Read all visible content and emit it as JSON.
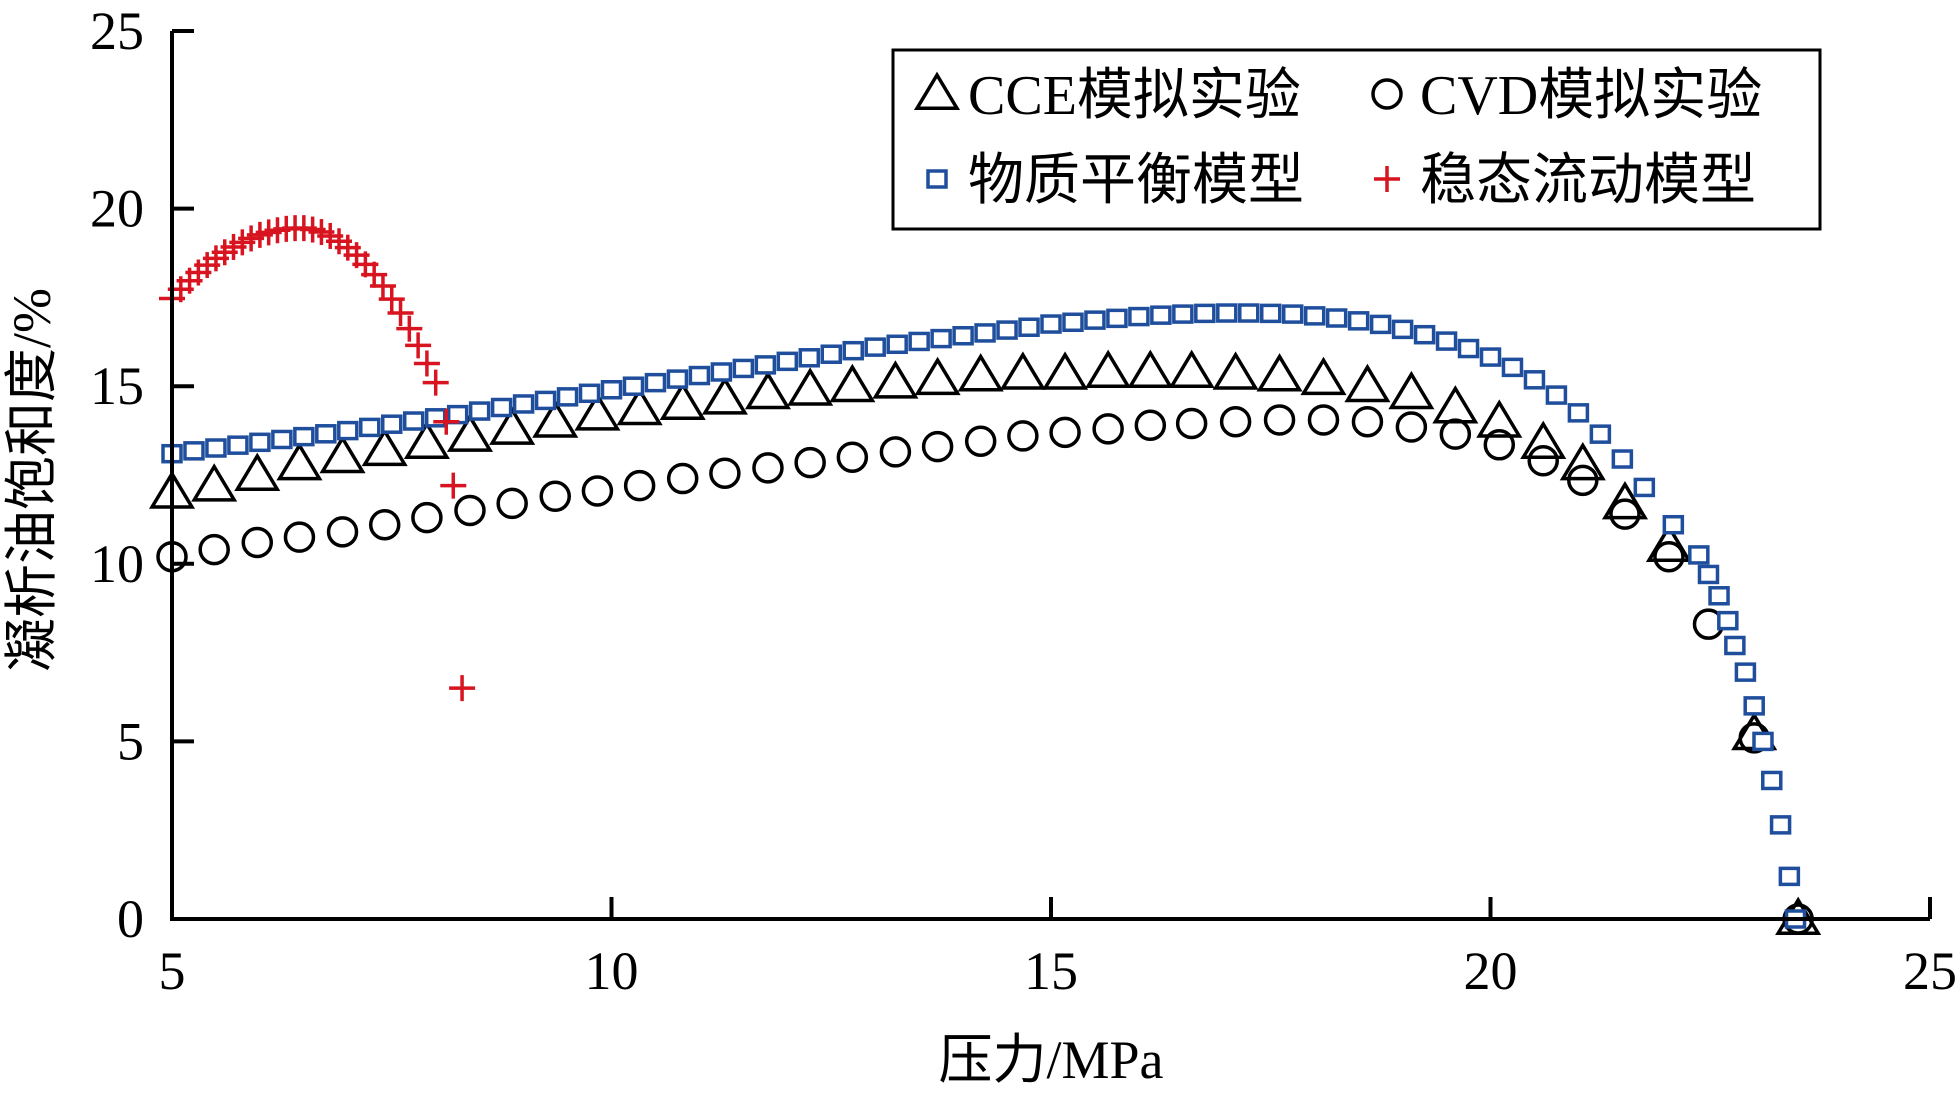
{
  "chart_data": {
    "type": "scatter",
    "xlabel": "压力/MPa",
    "ylabel": "凝析油饱和度/%",
    "xlim": [
      5,
      25
    ],
    "ylim": [
      0,
      25
    ],
    "xticks": [
      "5",
      "10",
      "15",
      "20",
      "25"
    ],
    "yticks": [
      "0",
      "5",
      "10",
      "15",
      "20",
      "25"
    ],
    "grid": false,
    "legend_position": "top-right",
    "series": [
      {
        "name": "CCE模拟实验",
        "marker": "triangle",
        "color": "#000000",
        "x": [
          5.0,
          5.48,
          5.97,
          6.45,
          6.94,
          7.42,
          7.9,
          8.39,
          8.87,
          9.36,
          9.84,
          10.32,
          10.81,
          11.29,
          11.78,
          12.26,
          12.74,
          13.23,
          13.71,
          14.2,
          14.68,
          15.16,
          15.65,
          16.13,
          16.6,
          17.1,
          17.6,
          18.1,
          18.6,
          19.1,
          19.6,
          20.1,
          20.6,
          21.05,
          21.53,
          22.03,
          23.0,
          23.5
        ],
        "y": [
          12.0,
          12.2,
          12.5,
          12.8,
          13.0,
          13.2,
          13.4,
          13.6,
          13.8,
          14.0,
          14.2,
          14.35,
          14.5,
          14.65,
          14.8,
          14.9,
          15.0,
          15.1,
          15.2,
          15.3,
          15.35,
          15.35,
          15.4,
          15.4,
          15.4,
          15.35,
          15.3,
          15.2,
          15.0,
          14.8,
          14.4,
          14.0,
          13.4,
          12.8,
          11.7,
          10.5,
          5.2,
          0.0
        ]
      },
      {
        "name": "CVD模拟实验",
        "marker": "circle",
        "color": "#000000",
        "x": [
          5.0,
          5.48,
          5.97,
          6.45,
          6.94,
          7.42,
          7.9,
          8.39,
          8.87,
          9.36,
          9.84,
          10.32,
          10.81,
          11.29,
          11.78,
          12.26,
          12.74,
          13.23,
          13.71,
          14.2,
          14.68,
          15.16,
          15.65,
          16.13,
          16.6,
          17.1,
          17.6,
          18.1,
          18.6,
          19.1,
          19.6,
          20.1,
          20.6,
          21.05,
          21.53,
          22.03,
          22.48,
          23.0,
          23.5
        ],
        "y": [
          10.2,
          10.4,
          10.6,
          10.75,
          10.9,
          11.1,
          11.3,
          11.5,
          11.7,
          11.9,
          12.05,
          12.2,
          12.4,
          12.55,
          12.7,
          12.85,
          13.0,
          13.15,
          13.3,
          13.45,
          13.6,
          13.7,
          13.8,
          13.9,
          13.95,
          14.0,
          14.05,
          14.05,
          14.0,
          13.85,
          13.65,
          13.35,
          12.9,
          12.35,
          11.4,
          10.2,
          8.3,
          5.1,
          0.0
        ]
      },
      {
        "name": "物质平衡模型",
        "marker": "square",
        "color": "#1f4e9c",
        "x": [
          5,
          5.25,
          5.5,
          5.75,
          6,
          6.25,
          6.5,
          6.75,
          7,
          7.25,
          7.5,
          7.75,
          8,
          8.25,
          8.5,
          8.75,
          9,
          9.25,
          9.5,
          9.75,
          10,
          10.25,
          10.5,
          10.75,
          11,
          11.25,
          11.5,
          11.75,
          12,
          12.25,
          12.5,
          12.75,
          13,
          13.25,
          13.5,
          13.75,
          14,
          14.25,
          14.5,
          14.75,
          15,
          15.25,
          15.5,
          15.75,
          16,
          16.25,
          16.5,
          16.75,
          17,
          17.25,
          17.5,
          17.75,
          18,
          18.25,
          18.5,
          18.75,
          19,
          19.25,
          19.5,
          19.75,
          20,
          20.25,
          20.5,
          20.75,
          21,
          21.25,
          21.5,
          21.75,
          22.08,
          22.37,
          22.48,
          22.6,
          22.7,
          22.78,
          22.9,
          23.0,
          23.1,
          23.2,
          23.3,
          23.4,
          23.47
        ],
        "y": [
          13.1,
          13.18,
          13.26,
          13.34,
          13.42,
          13.5,
          13.58,
          13.66,
          13.75,
          13.84,
          13.93,
          14.02,
          14.11,
          14.2,
          14.3,
          14.4,
          14.5,
          14.6,
          14.7,
          14.8,
          14.9,
          15.0,
          15.1,
          15.2,
          15.3,
          15.4,
          15.5,
          15.6,
          15.7,
          15.8,
          15.9,
          16.0,
          16.1,
          16.18,
          16.26,
          16.34,
          16.42,
          16.5,
          16.58,
          16.66,
          16.75,
          16.8,
          16.86,
          16.91,
          16.96,
          17.0,
          17.03,
          17.05,
          17.06,
          17.06,
          17.05,
          17.03,
          16.98,
          16.92,
          16.84,
          16.74,
          16.6,
          16.45,
          16.27,
          16.06,
          15.82,
          15.53,
          15.18,
          14.75,
          14.25,
          13.65,
          12.95,
          12.15,
          11.1,
          10.25,
          9.7,
          9.1,
          8.4,
          7.7,
          6.95,
          6.0,
          5.0,
          3.9,
          2.65,
          1.2,
          0.0
        ]
      },
      {
        "name": "稳态流动模型",
        "marker": "plus",
        "color": "#d7141f",
        "x": [
          5.0,
          5.1,
          5.2,
          5.3,
          5.4,
          5.5,
          5.6,
          5.7,
          5.8,
          5.9,
          6.0,
          6.1,
          6.2,
          6.3,
          6.4,
          6.5,
          6.6,
          6.7,
          6.8,
          6.9,
          7.0,
          7.1,
          7.2,
          7.3,
          7.4,
          7.5,
          7.6,
          7.7,
          7.8,
          7.9,
          8.0,
          8.12,
          8.2,
          8.3
        ],
        "y": [
          17.47,
          17.73,
          17.97,
          18.2,
          18.41,
          18.6,
          18.77,
          18.92,
          19.05,
          19.16,
          19.26,
          19.33,
          19.39,
          19.43,
          19.45,
          19.45,
          19.41,
          19.34,
          19.23,
          19.08,
          18.9,
          18.69,
          18.43,
          18.14,
          17.82,
          17.45,
          17.06,
          16.62,
          16.15,
          15.64,
          15.1,
          14.0,
          12.2,
          6.5
        ]
      }
    ]
  }
}
